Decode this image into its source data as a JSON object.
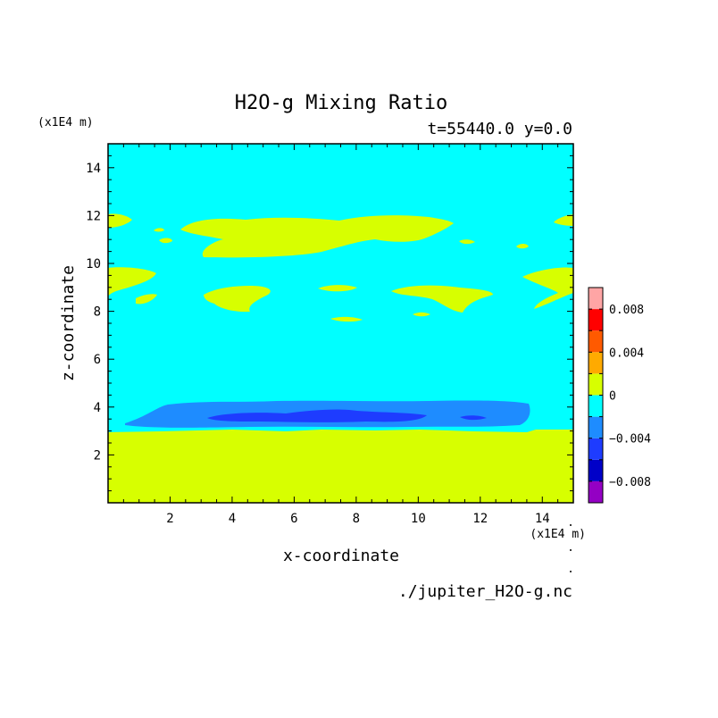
{
  "chart_data": {
    "type": "contour",
    "title": "H2O-g Mixing Ratio",
    "subtitle": "t=55440.0 y=0.0",
    "xlabel": "x-coordinate",
    "ylabel": "z-coordinate",
    "x_unit": "(x1E4 m)",
    "y_unit": "(x1E4 m)",
    "xlim": [
      0,
      15
    ],
    "ylim": [
      0,
      15
    ],
    "x_ticks": [
      "2",
      "4",
      "6",
      "8",
      "10",
      "12",
      "14"
    ],
    "y_ticks": [
      "2",
      "4",
      "6",
      "8",
      "10",
      "12",
      "14"
    ],
    "source_file": "./jupiter_H2O-g.nc",
    "background_level": "cyan",
    "colorbar": {
      "levels": [
        -0.01,
        -0.008,
        -0.006,
        -0.004,
        -0.002,
        0,
        0.002,
        0.004,
        0.006,
        0.008,
        0.01
      ],
      "labels": [
        "0.008",
        "0.004",
        "0",
        "−0.004",
        "−0.008"
      ],
      "colors": [
        "#9400c4",
        "#0000c8",
        "#1e3cff",
        "#1e8cff",
        "#00ffff",
        "#d7ff00",
        "#ffaa00",
        "#ff5a00",
        "#ff0000",
        "#ffa5a5"
      ]
    },
    "regions": {
      "lower_layer": {
        "z_top": 3.0,
        "color": "#d7ff00"
      },
      "negative_band": {
        "z_range": [
          3.0,
          4.3
        ],
        "x_range": [
          0.7,
          13.6
        ],
        "color": "#1e8cff"
      },
      "negative_core": {
        "z_range": [
          3.3,
          3.9
        ],
        "x_range": [
          3.1,
          11.7
        ],
        "color": "#1e3cff"
      }
    }
  }
}
